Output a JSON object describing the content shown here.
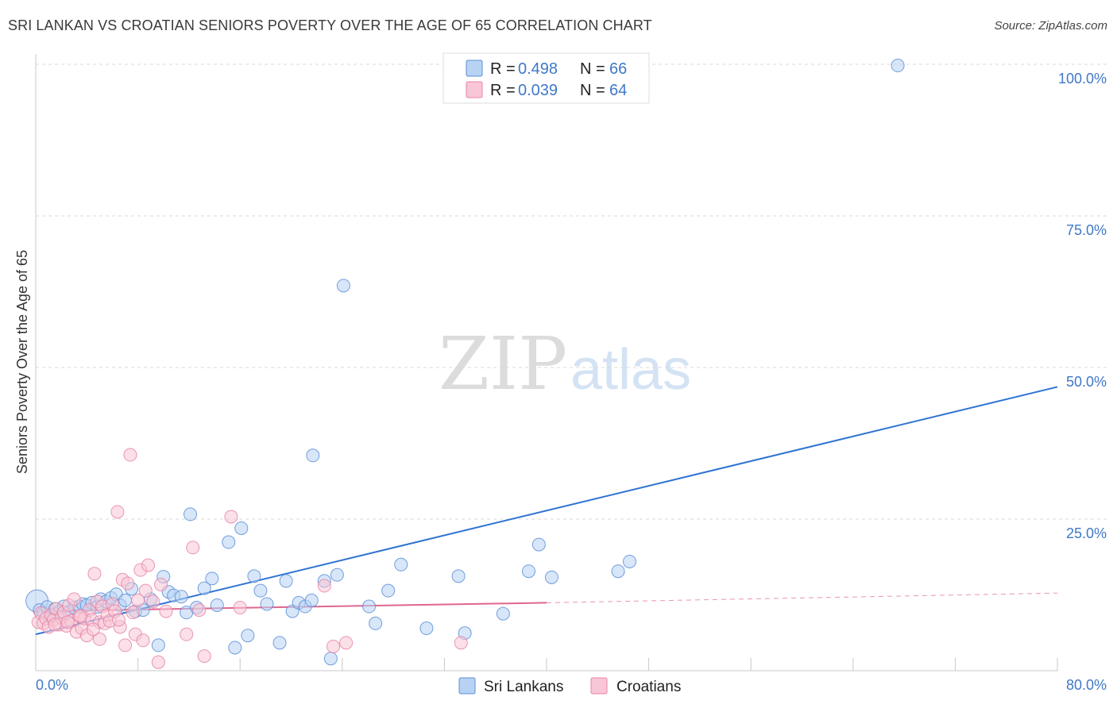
{
  "title": "SRI LANKAN VS CROATIAN SENIORS POVERTY OVER THE AGE OF 65 CORRELATION CHART",
  "source": "Source: ZipAtlas.com",
  "watermark": {
    "zip": "ZIP",
    "atlas": "atlas"
  },
  "legend": {
    "r_label": "R =",
    "n_label": "N =",
    "entries": [
      {
        "r": "0.498",
        "n": "66",
        "fill": "#b8d2f4",
        "stroke": "#5b8fd6"
      },
      {
        "r": "0.039",
        "n": "64",
        "fill": "#f8c6d6",
        "stroke": "#e884a6"
      }
    ]
  },
  "bottom_legend": [
    {
      "label": "Sri Lankans",
      "fill": "#b8d2f4",
      "stroke": "#5b8fd6"
    },
    {
      "label": "Croatians",
      "fill": "#f8c6d6",
      "stroke": "#e884a6"
    }
  ],
  "chart_data": {
    "type": "scatter",
    "title": "SRI LANKAN VS CROATIAN SENIORS POVERTY OVER THE AGE OF 65 CORRELATION CHART",
    "xlabel": "",
    "ylabel": "Seniors Poverty Over the Age of 65",
    "xlim": [
      0,
      80
    ],
    "ylim": [
      0,
      100
    ],
    "x_tick_labels": [
      "0.0%",
      "80.0%"
    ],
    "y_ticks": [
      25,
      50,
      75,
      100
    ],
    "y_tick_labels": [
      "25.0%",
      "50.0%",
      "75.0%",
      "100.0%"
    ],
    "grid": true,
    "legend_position": "top-center",
    "series": [
      {
        "name": "Sri Lankans",
        "color": "#5b8fd6",
        "fill": "#b8d2f4",
        "trend": {
          "x": [
            0,
            80
          ],
          "y": [
            6.0,
            46.8
          ],
          "style": "solid",
          "color": "#2f73d2"
        },
        "points": [
          [
            0.1,
            11.5
          ],
          [
            0.3,
            10.0
          ],
          [
            0.6,
            9.5
          ],
          [
            0.9,
            10.5
          ],
          [
            1.2,
            9.0
          ],
          [
            1.5,
            10.2
          ],
          [
            1.9,
            9.8
          ],
          [
            2.2,
            10.6
          ],
          [
            2.6,
            9.6
          ],
          [
            3.0,
            10.4
          ],
          [
            3.4,
            10.6
          ],
          [
            3.7,
            11.0
          ],
          [
            4.0,
            10.8
          ],
          [
            4.4,
            11.2
          ],
          [
            4.8,
            10.5
          ],
          [
            5.1,
            11.8
          ],
          [
            5.5,
            11.4
          ],
          [
            5.9,
            12.0
          ],
          [
            6.3,
            12.6
          ],
          [
            6.6,
            10.8
          ],
          [
            7.0,
            11.6
          ],
          [
            7.5,
            13.5
          ],
          [
            7.8,
            9.8
          ],
          [
            8.4,
            10.0
          ],
          [
            9.0,
            11.8
          ],
          [
            9.6,
            4.2
          ],
          [
            10.0,
            15.5
          ],
          [
            10.4,
            13.0
          ],
          [
            10.8,
            12.4
          ],
          [
            11.4,
            12.2
          ],
          [
            11.8,
            9.6
          ],
          [
            12.1,
            25.8
          ],
          [
            12.6,
            10.4
          ],
          [
            13.2,
            13.6
          ],
          [
            13.8,
            15.2
          ],
          [
            14.2,
            10.8
          ],
          [
            15.1,
            21.2
          ],
          [
            15.6,
            3.8
          ],
          [
            16.1,
            23.5
          ],
          [
            16.6,
            5.8
          ],
          [
            17.1,
            15.6
          ],
          [
            17.6,
            13.2
          ],
          [
            18.1,
            11.0
          ],
          [
            19.1,
            4.6
          ],
          [
            19.6,
            14.8
          ],
          [
            20.1,
            9.8
          ],
          [
            20.6,
            11.2
          ],
          [
            21.1,
            10.6
          ],
          [
            21.6,
            11.6
          ],
          [
            21.7,
            35.5
          ],
          [
            22.6,
            14.8
          ],
          [
            23.1,
            2.0
          ],
          [
            23.6,
            15.8
          ],
          [
            24.1,
            63.5
          ],
          [
            26.1,
            10.6
          ],
          [
            26.6,
            7.8
          ],
          [
            27.6,
            13.2
          ],
          [
            28.6,
            17.5
          ],
          [
            30.6,
            7.0
          ],
          [
            33.1,
            15.6
          ],
          [
            33.6,
            6.2
          ],
          [
            36.6,
            9.4
          ],
          [
            38.6,
            16.4
          ],
          [
            39.4,
            20.8
          ],
          [
            40.4,
            15.4
          ],
          [
            45.6,
            16.4
          ],
          [
            46.5,
            18.0
          ],
          [
            67.5,
            99.8
          ]
        ]
      },
      {
        "name": "Croatians",
        "color": "#e884a6",
        "fill": "#f8c6d6",
        "trend": {
          "x": [
            0,
            40
          ],
          "y": [
            9.8,
            11.2
          ],
          "style": "solid",
          "color": "#e0668f",
          "dashed_to": [
            80,
            12.8
          ]
        },
        "points": [
          [
            0.2,
            8.0
          ],
          [
            0.4,
            9.5
          ],
          [
            0.6,
            7.8
          ],
          [
            0.8,
            8.6
          ],
          [
            1.0,
            7.2
          ],
          [
            1.2,
            9.2
          ],
          [
            1.4,
            8.4
          ],
          [
            1.6,
            10.2
          ],
          [
            1.8,
            7.6
          ],
          [
            2.0,
            8.8
          ],
          [
            2.2,
            9.6
          ],
          [
            2.4,
            7.4
          ],
          [
            2.6,
            10.8
          ],
          [
            2.8,
            8.2
          ],
          [
            3.0,
            11.8
          ],
          [
            3.2,
            6.4
          ],
          [
            3.4,
            9.0
          ],
          [
            3.6,
            7.0
          ],
          [
            3.8,
            8.6
          ],
          [
            4.0,
            5.8
          ],
          [
            4.2,
            10.0
          ],
          [
            4.4,
            8.4
          ],
          [
            4.6,
            16.0
          ],
          [
            4.8,
            11.4
          ],
          [
            5.0,
            8.0
          ],
          [
            5.2,
            10.6
          ],
          [
            5.4,
            7.8
          ],
          [
            5.6,
            9.2
          ],
          [
            5.8,
            8.2
          ],
          [
            6.0,
            11.0
          ],
          [
            6.2,
            9.8
          ],
          [
            6.4,
            26.2
          ],
          [
            6.6,
            7.2
          ],
          [
            6.8,
            15.0
          ],
          [
            7.0,
            4.2
          ],
          [
            7.2,
            14.4
          ],
          [
            7.4,
            35.6
          ],
          [
            7.6,
            9.6
          ],
          [
            7.8,
            6.0
          ],
          [
            8.0,
            11.6
          ],
          [
            8.2,
            16.6
          ],
          [
            8.4,
            5.0
          ],
          [
            8.6,
            13.2
          ],
          [
            8.8,
            17.4
          ],
          [
            9.2,
            11.4
          ],
          [
            9.6,
            1.4
          ],
          [
            9.8,
            14.2
          ],
          [
            10.2,
            9.8
          ],
          [
            11.8,
            6.0
          ],
          [
            12.3,
            20.3
          ],
          [
            12.8,
            10.0
          ],
          [
            13.2,
            2.4
          ],
          [
            15.3,
            25.4
          ],
          [
            16.0,
            10.4
          ],
          [
            22.6,
            14.0
          ],
          [
            23.3,
            4.0
          ],
          [
            24.3,
            4.6
          ],
          [
            33.3,
            4.6
          ],
          [
            5.0,
            5.2
          ],
          [
            1.5,
            7.6
          ],
          [
            2.5,
            8.0
          ],
          [
            3.5,
            9.0
          ],
          [
            4.5,
            6.8
          ],
          [
            6.5,
            8.4
          ]
        ]
      }
    ]
  }
}
